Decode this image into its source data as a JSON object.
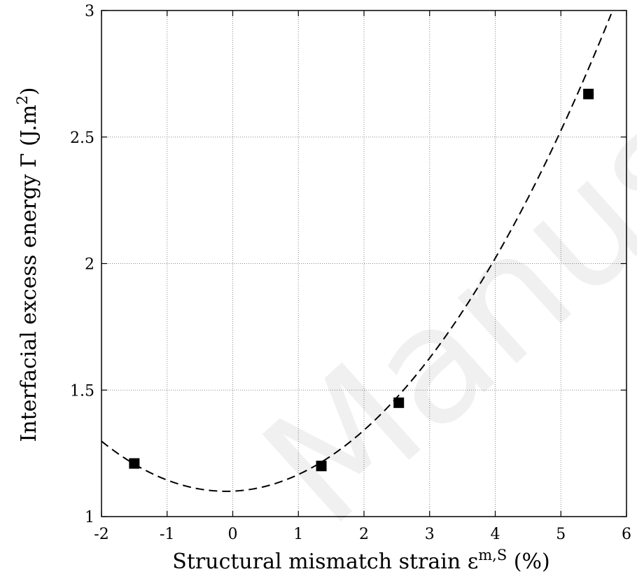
{
  "chart_data": {
    "type": "scatter",
    "title": "",
    "xlabel": {
      "main": "Structural mismatch strain ε",
      "sup": "m,S",
      "tail": " (%)"
    },
    "ylabel": {
      "main": "Interfacial excess energy Γ (J.m",
      "sup": "2",
      "tail": ")"
    },
    "xlim": [
      -2,
      6
    ],
    "ylim": [
      1,
      3
    ],
    "xticks": [
      -2,
      -1,
      0,
      1,
      2,
      3,
      4,
      5,
      6
    ],
    "xtick_labels": [
      "-2",
      "-1",
      "0",
      "1",
      "2",
      "3",
      "4",
      "5",
      "6"
    ],
    "yticks": [
      1,
      1.5,
      2,
      2.5,
      3
    ],
    "ytick_labels": [
      "1",
      "1.5",
      "2",
      "2.5",
      "3"
    ],
    "grid": true,
    "series": [
      {
        "kind": "points",
        "marker": "filled-square",
        "color": "#000000",
        "x": [
          -1.5,
          1.35,
          2.53,
          5.42
        ],
        "y": [
          1.21,
          1.2,
          1.45,
          2.67
        ]
      },
      {
        "kind": "fit-curve",
        "style": "dashed",
        "color": "#000000",
        "equation": "y = 0.0548*(x + 0.1)^2 + 1.1",
        "coefficients": {
          "a": 0.0548,
          "x0": -0.1,
          "y0": 1.1
        }
      }
    ]
  },
  "watermark": "Manusc"
}
